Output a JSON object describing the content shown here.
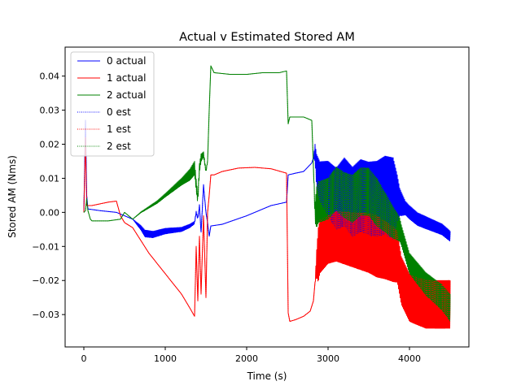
{
  "chart_data": {
    "type": "line",
    "title": "Actual v Estimated Stored AM",
    "xlabel": "Time (s)",
    "ylabel": "Stored AM (Nms)",
    "xlim": [
      -230,
      4730
    ],
    "ylim": [
      -0.0395,
      0.0485
    ],
    "xticks": [
      0,
      1000,
      2000,
      3000,
      4000
    ],
    "xtick_labels": [
      "0",
      "1000",
      "2000",
      "3000",
      "4000"
    ],
    "yticks": [
      -0.03,
      -0.02,
      -0.01,
      0.0,
      0.01,
      0.02,
      0.03,
      0.04
    ],
    "ytick_labels": [
      "−0.03",
      "−0.02",
      "−0.01",
      "0.00",
      "0.01",
      "0.02",
      "0.03",
      "0.04"
    ],
    "grid": false,
    "legend_position": "top-left",
    "colors": {
      "0": "#0000ff",
      "1": "#ff0000",
      "2": "#008000"
    },
    "series": [
      {
        "name": "0 actual",
        "color": "#0000ff",
        "style": "solid",
        "points": [
          [
            0,
            0.0
          ],
          [
            20,
            0.027
          ],
          [
            35,
            0.005
          ],
          [
            50,
            0.001
          ],
          [
            200,
            0.0005
          ],
          [
            400,
            0.0
          ],
          [
            600,
            -0.002
          ],
          [
            700,
            -0.0045
          ],
          [
            750,
            -0.0062
          ],
          [
            850,
            -0.0065
          ],
          [
            1000,
            -0.0055
          ],
          [
            1200,
            -0.005
          ],
          [
            1300,
            -0.004
          ],
          [
            1360,
            -0.003
          ],
          [
            1380,
            0.0
          ],
          [
            1400,
            -0.0018
          ],
          [
            1420,
            0.002
          ],
          [
            1440,
            -0.006
          ],
          [
            1470,
            0.008
          ],
          [
            1500,
            0.0
          ],
          [
            1520,
            -0.003
          ],
          [
            1540,
            -0.007
          ],
          [
            1560,
            -0.004
          ],
          [
            1700,
            -0.0035
          ],
          [
            2000,
            -0.001
          ],
          [
            2300,
            0.002
          ],
          [
            2490,
            0.003
          ],
          [
            2510,
            0.011
          ],
          [
            2600,
            0.0115
          ],
          [
            2700,
            0.012
          ],
          [
            2800,
            0.0145
          ],
          [
            2840,
            0.0175
          ],
          [
            2860,
            0.012
          ],
          [
            2900,
            0.009
          ],
          [
            3000,
            0.007
          ],
          [
            3100,
            0.004
          ],
          [
            3200,
            0.006
          ],
          [
            3300,
            0.003
          ],
          [
            3400,
            0.005
          ],
          [
            3500,
            0.004
          ],
          [
            3600,
            0.004
          ],
          [
            3700,
            0.005
          ],
          [
            3800,
            0.004
          ],
          [
            3850,
            0.004
          ],
          [
            3900,
            0.0025
          ],
          [
            4000,
            0.0
          ],
          [
            4100,
            -0.002
          ],
          [
            4200,
            -0.003
          ],
          [
            4300,
            -0.004
          ],
          [
            4400,
            -0.005
          ],
          [
            4500,
            -0.007
          ]
        ],
        "amplitude": [
          [
            0,
            0
          ],
          [
            600,
            0
          ],
          [
            750,
            0.001
          ],
          [
            1000,
            0.0008
          ],
          [
            1300,
            0.0005
          ],
          [
            1550,
            0
          ],
          [
            2820,
            0
          ],
          [
            2860,
            0.005
          ],
          [
            3000,
            0.008
          ],
          [
            3200,
            0.01
          ],
          [
            3600,
            0.011
          ],
          [
            3800,
            0.012
          ],
          [
            3880,
            0.004
          ],
          [
            3950,
            0.002
          ],
          [
            4500,
            0.0015
          ]
        ]
      },
      {
        "name": "1 actual",
        "color": "#ff0000",
        "style": "solid",
        "points": [
          [
            0,
            0.0
          ],
          [
            20,
            0.022
          ],
          [
            35,
            0.002
          ],
          [
            100,
            0.002
          ],
          [
            200,
            0.0025
          ],
          [
            300,
            0.003
          ],
          [
            400,
            0.0033
          ],
          [
            450,
            -0.001
          ],
          [
            500,
            -0.003
          ],
          [
            600,
            -0.0045
          ],
          [
            800,
            -0.012
          ],
          [
            1000,
            -0.018
          ],
          [
            1200,
            -0.024
          ],
          [
            1300,
            -0.028
          ],
          [
            1360,
            -0.0305
          ],
          [
            1380,
            -0.01
          ],
          [
            1400,
            -0.026
          ],
          [
            1420,
            -0.007
          ],
          [
            1440,
            -0.024
          ],
          [
            1470,
            -0.001
          ],
          [
            1500,
            -0.025
          ],
          [
            1520,
            0.0
          ],
          [
            1540,
            0.005
          ],
          [
            1560,
            0.011
          ],
          [
            1600,
            0.011
          ],
          [
            1700,
            0.012
          ],
          [
            1900,
            0.013
          ],
          [
            2100,
            0.0132
          ],
          [
            2300,
            0.0128
          ],
          [
            2490,
            0.0115
          ],
          [
            2510,
            -0.0295
          ],
          [
            2530,
            -0.032
          ],
          [
            2600,
            -0.0315
          ],
          [
            2700,
            -0.0305
          ],
          [
            2780,
            -0.029
          ],
          [
            2820,
            -0.026
          ],
          [
            2860,
            -0.015
          ],
          [
            2900,
            -0.01
          ],
          [
            3000,
            -0.008
          ],
          [
            3100,
            -0.007
          ],
          [
            3300,
            -0.008
          ],
          [
            3500,
            -0.009
          ],
          [
            3700,
            -0.011
          ],
          [
            3850,
            -0.013
          ],
          [
            3900,
            -0.02
          ],
          [
            4000,
            -0.025
          ],
          [
            4200,
            -0.027
          ],
          [
            4500,
            -0.027
          ]
        ],
        "amplitude": [
          [
            0,
            0
          ],
          [
            1550,
            0
          ],
          [
            2840,
            0
          ],
          [
            2880,
            0.008
          ],
          [
            3000,
            0.007
          ],
          [
            3300,
            0.008
          ],
          [
            3600,
            0.009
          ],
          [
            3800,
            0.008
          ],
          [
            3900,
            0.007
          ],
          [
            4000,
            0.007
          ],
          [
            4500,
            0.007
          ]
        ]
      },
      {
        "name": "2 actual",
        "color": "#008000",
        "style": "solid",
        "points": [
          [
            0,
            0.0
          ],
          [
            20,
            0.0005
          ],
          [
            35,
            0.004
          ],
          [
            50,
            0.0005
          ],
          [
            80,
            -0.002
          ],
          [
            100,
            -0.0025
          ],
          [
            300,
            -0.0025
          ],
          [
            450,
            -0.002
          ],
          [
            500,
            0.0
          ],
          [
            600,
            -0.002
          ],
          [
            700,
            0.0
          ],
          [
            900,
            0.003
          ],
          [
            1100,
            0.007
          ],
          [
            1300,
            0.011
          ],
          [
            1360,
            0.013
          ],
          [
            1380,
            0.008
          ],
          [
            1400,
            0.004
          ],
          [
            1420,
            0.013
          ],
          [
            1440,
            0.016
          ],
          [
            1470,
            0.017
          ],
          [
            1500,
            0.012
          ],
          [
            1520,
            0.015
          ],
          [
            1540,
            0.03
          ],
          [
            1560,
            0.043
          ],
          [
            1580,
            0.042
          ],
          [
            1600,
            0.041
          ],
          [
            1800,
            0.0405
          ],
          [
            2000,
            0.0405
          ],
          [
            2200,
            0.041
          ],
          [
            2400,
            0.041
          ],
          [
            2490,
            0.0415
          ],
          [
            2510,
            0.026
          ],
          [
            2530,
            0.028
          ],
          [
            2600,
            0.028
          ],
          [
            2700,
            0.028
          ],
          [
            2800,
            0.027
          ],
          [
            2840,
            0.0
          ],
          [
            2880,
            0.003
          ],
          [
            3000,
            0.004
          ],
          [
            3100,
            0.007
          ],
          [
            3200,
            0.005
          ],
          [
            3300,
            0.004
          ],
          [
            3400,
            0.006
          ],
          [
            3500,
            0.006
          ],
          [
            3700,
            0.0
          ],
          [
            3800,
            -0.003
          ],
          [
            3880,
            -0.005
          ],
          [
            4000,
            -0.015
          ],
          [
            4200,
            -0.021
          ],
          [
            4400,
            -0.025
          ],
          [
            4500,
            -0.028
          ]
        ],
        "amplitude": [
          [
            0,
            0
          ],
          [
            600,
            0
          ],
          [
            1000,
            0.0005
          ],
          [
            1200,
            0.001
          ],
          [
            1360,
            0.002
          ],
          [
            1540,
            0
          ],
          [
            2820,
            0
          ],
          [
            2860,
            0.006
          ],
          [
            3000,
            0.006
          ],
          [
            3300,
            0.007
          ],
          [
            3600,
            0.007
          ],
          [
            3850,
            0.004
          ],
          [
            3900,
            0.003
          ],
          [
            4000,
            0.003
          ],
          [
            4300,
            0.0035
          ],
          [
            4500,
            0.004
          ]
        ]
      },
      {
        "name": "0 est",
        "color": "#0000ff",
        "style": "dotted",
        "overlays": "0 actual"
      },
      {
        "name": "1 est",
        "color": "#ff0000",
        "style": "dotted",
        "overlays": "1 actual"
      },
      {
        "name": "2 est",
        "color": "#008000",
        "style": "dotted",
        "overlays": "2 actual"
      }
    ]
  }
}
